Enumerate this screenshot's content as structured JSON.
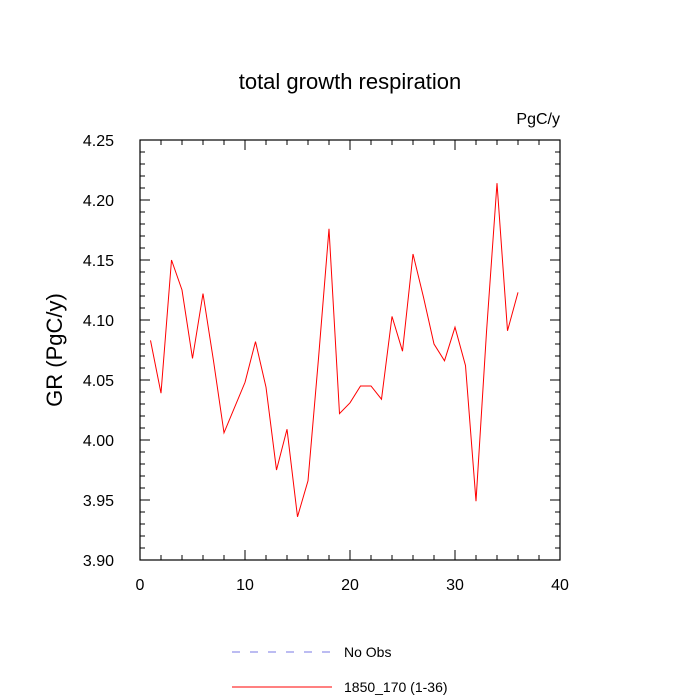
{
  "chart_data": {
    "type": "line",
    "title": "total growth respiration",
    "units": "PgC/y",
    "xlabel": "",
    "ylabel": "GR  (PgC/y)",
    "xlim": [
      0,
      40
    ],
    "ylim": [
      3.9,
      4.25
    ],
    "x_ticks": [
      0,
      10,
      20,
      30,
      40
    ],
    "y_ticks": [
      3.9,
      3.95,
      4.0,
      4.05,
      4.1,
      4.15,
      4.2,
      4.25
    ],
    "x_minor_step": 2,
    "y_minor_step": 0.01,
    "grid": false,
    "legend_position": "bottom-center",
    "series": [
      {
        "name": "No Obs",
        "color": "#7a7ae6",
        "dash": "dashed",
        "x": [],
        "values": []
      },
      {
        "name": "1850_170 (1-36)",
        "color": "#ff0000",
        "dash": "solid",
        "x": [
          1,
          2,
          3,
          4,
          5,
          6,
          7,
          8,
          9,
          10,
          11,
          12,
          13,
          14,
          15,
          16,
          17,
          18,
          19,
          20,
          21,
          22,
          23,
          24,
          25,
          26,
          27,
          28,
          29,
          30,
          31,
          32,
          33,
          34,
          35,
          36
        ],
        "values": [
          4.083,
          4.039,
          4.15,
          4.125,
          4.068,
          4.122,
          4.066,
          4.006,
          4.027,
          4.048,
          4.082,
          4.044,
          3.975,
          4.009,
          3.936,
          3.966,
          4.068,
          4.176,
          4.022,
          4.031,
          4.045,
          4.045,
          4.034,
          4.103,
          4.074,
          4.155,
          4.119,
          4.08,
          4.066,
          4.094,
          4.062,
          3.949,
          4.09,
          4.214,
          4.091,
          4.123
        ]
      }
    ]
  }
}
